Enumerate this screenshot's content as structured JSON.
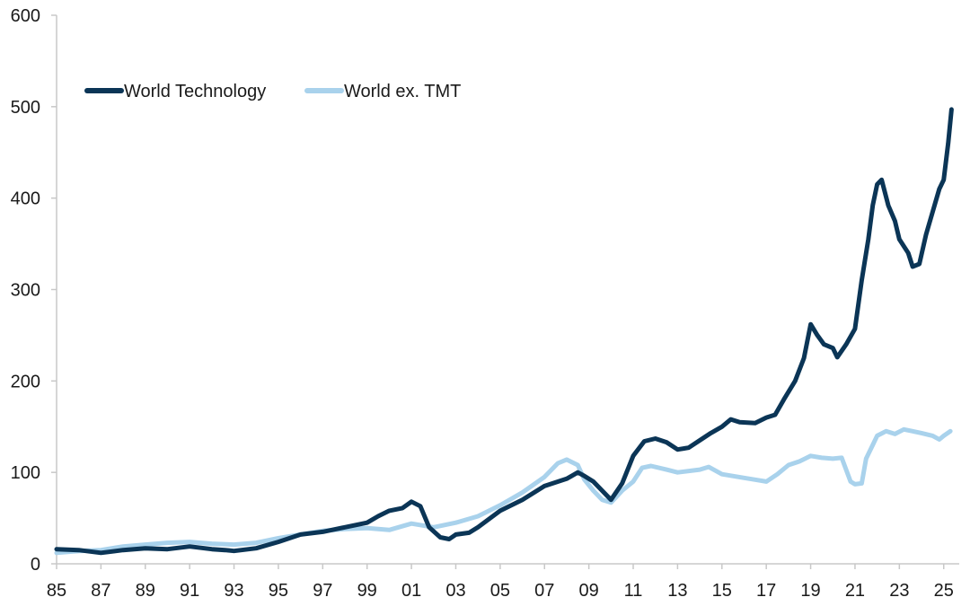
{
  "chart_data": {
    "type": "line",
    "title": "",
    "xlabel": "",
    "ylabel": "",
    "ylim": [
      0,
      600
    ],
    "xlim": [
      1985,
      2025.7
    ],
    "grid": false,
    "legend_position": "top-left",
    "y_ticks": [
      {
        "value": 0,
        "label": "0"
      },
      {
        "value": 100,
        "label": "100"
      },
      {
        "value": 200,
        "label": "200"
      },
      {
        "value": 300,
        "label": "300"
      },
      {
        "value": 400,
        "label": "400"
      },
      {
        "value": 500,
        "label": "500"
      },
      {
        "value": 600,
        "label": "600"
      }
    ],
    "x_ticks": [
      {
        "value": 1985,
        "label": "85"
      },
      {
        "value": 1987,
        "label": "87"
      },
      {
        "value": 1989,
        "label": "89"
      },
      {
        "value": 1991,
        "label": "91"
      },
      {
        "value": 1993,
        "label": "93"
      },
      {
        "value": 1995,
        "label": "95"
      },
      {
        "value": 1997,
        "label": "97"
      },
      {
        "value": 1999,
        "label": "99"
      },
      {
        "value": 2001,
        "label": "01"
      },
      {
        "value": 2003,
        "label": "03"
      },
      {
        "value": 2005,
        "label": "05"
      },
      {
        "value": 2007,
        "label": "07"
      },
      {
        "value": 2009,
        "label": "09"
      },
      {
        "value": 2011,
        "label": "11"
      },
      {
        "value": 2013,
        "label": "13"
      },
      {
        "value": 2015,
        "label": "15"
      },
      {
        "value": 2017,
        "label": "17"
      },
      {
        "value": 2019,
        "label": "19"
      },
      {
        "value": 2021,
        "label": "21"
      },
      {
        "value": 2023,
        "label": "23"
      },
      {
        "value": 2025,
        "label": "25"
      }
    ],
    "series": [
      {
        "name": "World Technology",
        "color": "#0b3556",
        "points": [
          [
            1985.0,
            16
          ],
          [
            1986.0,
            15
          ],
          [
            1987.0,
            12
          ],
          [
            1988.0,
            15
          ],
          [
            1989.0,
            17
          ],
          [
            1990.0,
            16
          ],
          [
            1991.0,
            19
          ],
          [
            1992.0,
            16
          ],
          [
            1992.6,
            15
          ],
          [
            1993.0,
            14
          ],
          [
            1994.0,
            17
          ],
          [
            1995.0,
            24
          ],
          [
            1996.0,
            32
          ],
          [
            1997.0,
            35
          ],
          [
            1998.0,
            40
          ],
          [
            1999.0,
            45
          ],
          [
            1999.5,
            52
          ],
          [
            2000.0,
            58
          ],
          [
            2000.6,
            61
          ],
          [
            2001.0,
            68
          ],
          [
            2001.4,
            63
          ],
          [
            2001.8,
            40
          ],
          [
            2002.3,
            29
          ],
          [
            2002.7,
            27
          ],
          [
            2003.0,
            32
          ],
          [
            2003.6,
            34
          ],
          [
            2004.0,
            40
          ],
          [
            2005.0,
            58
          ],
          [
            2006.0,
            70
          ],
          [
            2007.0,
            85
          ],
          [
            2008.0,
            93
          ],
          [
            2008.5,
            100
          ],
          [
            2008.8,
            96
          ],
          [
            2009.2,
            90
          ],
          [
            2009.6,
            80
          ],
          [
            2010.0,
            70
          ],
          [
            2010.5,
            88
          ],
          [
            2011.0,
            118
          ],
          [
            2011.5,
            134
          ],
          [
            2012.0,
            137
          ],
          [
            2012.5,
            133
          ],
          [
            2013.0,
            125
          ],
          [
            2013.5,
            127
          ],
          [
            2014.0,
            135
          ],
          [
            2014.5,
            143
          ],
          [
            2015.0,
            150
          ],
          [
            2015.4,
            158
          ],
          [
            2015.8,
            155
          ],
          [
            2016.5,
            154
          ],
          [
            2017.0,
            160
          ],
          [
            2017.4,
            163
          ],
          [
            2017.8,
            180
          ],
          [
            2018.3,
            200
          ],
          [
            2018.7,
            225
          ],
          [
            2019.0,
            262
          ],
          [
            2019.3,
            250
          ],
          [
            2019.6,
            240
          ],
          [
            2020.0,
            236
          ],
          [
            2020.2,
            226
          ],
          [
            2020.6,
            240
          ],
          [
            2021.0,
            257
          ],
          [
            2021.3,
            310
          ],
          [
            2021.6,
            355
          ],
          [
            2021.8,
            392
          ],
          [
            2022.0,
            415
          ],
          [
            2022.2,
            420
          ],
          [
            2022.5,
            392
          ],
          [
            2022.8,
            375
          ],
          [
            2023.0,
            355
          ],
          [
            2023.4,
            340
          ],
          [
            2023.6,
            325
          ],
          [
            2023.9,
            328
          ],
          [
            2024.2,
            360
          ],
          [
            2024.5,
            385
          ],
          [
            2024.8,
            410
          ],
          [
            2025.0,
            420
          ],
          [
            2025.2,
            460
          ],
          [
            2025.35,
            497
          ]
        ]
      },
      {
        "name": "World ex. TMT",
        "color": "#a9d2ec",
        "points": [
          [
            1985.0,
            12
          ],
          [
            1986.0,
            14
          ],
          [
            1987.0,
            15
          ],
          [
            1988.0,
            19
          ],
          [
            1989.0,
            21
          ],
          [
            1990.0,
            23
          ],
          [
            1991.0,
            24
          ],
          [
            1992.0,
            22
          ],
          [
            1993.0,
            21
          ],
          [
            1994.0,
            23
          ],
          [
            1995.0,
            28
          ],
          [
            1996.0,
            32
          ],
          [
            1997.0,
            36
          ],
          [
            1998.0,
            38
          ],
          [
            1999.0,
            39
          ],
          [
            2000.0,
            37
          ],
          [
            2001.0,
            44
          ],
          [
            2002.0,
            40
          ],
          [
            2003.0,
            45
          ],
          [
            2004.0,
            52
          ],
          [
            2005.0,
            64
          ],
          [
            2006.0,
            78
          ],
          [
            2007.0,
            95
          ],
          [
            2007.6,
            110
          ],
          [
            2008.0,
            114
          ],
          [
            2008.5,
            108
          ],
          [
            2008.8,
            92
          ],
          [
            2009.2,
            80
          ],
          [
            2009.6,
            70
          ],
          [
            2010.0,
            67
          ],
          [
            2010.5,
            80
          ],
          [
            2011.0,
            90
          ],
          [
            2011.4,
            105
          ],
          [
            2011.8,
            107
          ],
          [
            2012.5,
            103
          ],
          [
            2013.0,
            100
          ],
          [
            2014.0,
            103
          ],
          [
            2014.4,
            106
          ],
          [
            2015.0,
            98
          ],
          [
            2016.0,
            94
          ],
          [
            2016.5,
            92
          ],
          [
            2017.0,
            90
          ],
          [
            2017.5,
            98
          ],
          [
            2018.0,
            108
          ],
          [
            2018.5,
            112
          ],
          [
            2019.0,
            118
          ],
          [
            2019.5,
            116
          ],
          [
            2020.0,
            115
          ],
          [
            2020.4,
            116
          ],
          [
            2020.8,
            90
          ],
          [
            2021.0,
            87
          ],
          [
            2021.3,
            88
          ],
          [
            2021.5,
            115
          ],
          [
            2021.8,
            130
          ],
          [
            2022.0,
            140
          ],
          [
            2022.4,
            145
          ],
          [
            2022.8,
            142
          ],
          [
            2023.2,
            147
          ],
          [
            2023.6,
            145
          ],
          [
            2024.0,
            143
          ],
          [
            2024.5,
            140
          ],
          [
            2024.8,
            136
          ],
          [
            2025.0,
            140
          ],
          [
            2025.3,
            145
          ]
        ]
      }
    ]
  }
}
